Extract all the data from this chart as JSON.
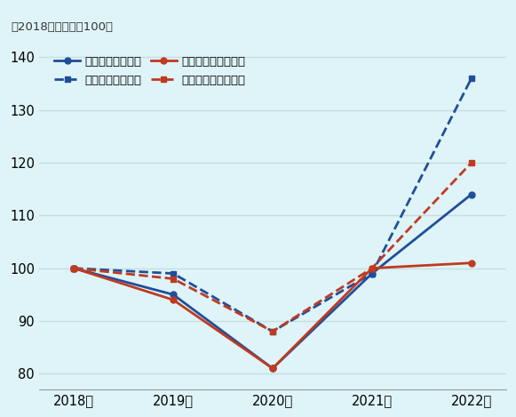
{
  "years": [
    "2018上",
    "2019上",
    "2020上",
    "2021上",
    "2022上"
  ],
  "export_yen": [
    100,
    95,
    81,
    99,
    114
  ],
  "import_yen": [
    100,
    99,
    88,
    99,
    136
  ],
  "export_dollar": [
    100,
    94,
    81,
    100,
    101
  ],
  "import_dollar": [
    100,
    98,
    88,
    100,
    120
  ],
  "color_blue": "#1f4e9a",
  "color_orange": "#c03a20",
  "subtitle": "（2018年上半期＝100）",
  "ylim_min": 77,
  "ylim_max": 142,
  "yticks": [
    80,
    90,
    100,
    110,
    120,
    130,
    140
  ],
  "background_color": "#dff4f8",
  "grid_color": "#c8dde0",
  "legend_export_yen": "輸出（円ベース）",
  "legend_import_yen": "輸入（円ベース）",
  "legend_export_dollar": "輸出（ドルベース）",
  "legend_import_dollar": "輸入（ドルベース）"
}
